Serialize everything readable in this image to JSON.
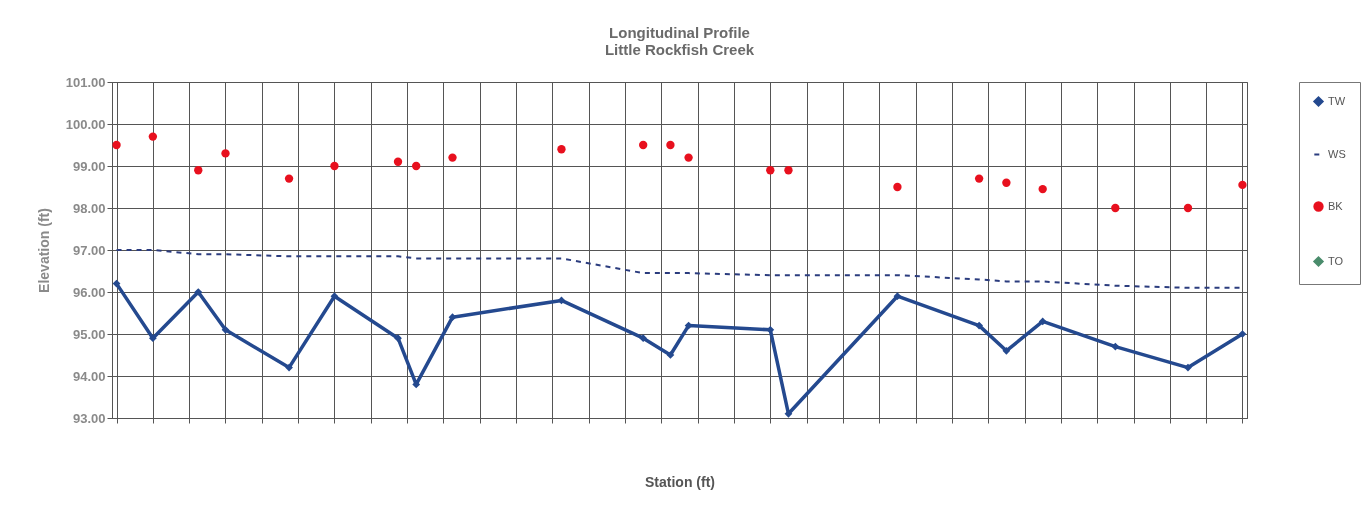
{
  "chart_data": {
    "type": "line",
    "title": "Longitudinal Profile",
    "subtitle": "Little Rockfish Creek",
    "xlabel": "Station (ft)",
    "ylabel": "Elevation (ft)",
    "categories": [
      null,
      null,
      null,
      null,
      null,
      null,
      null,
      null,
      null,
      null,
      null,
      null,
      null,
      null,
      null,
      null,
      null,
      null,
      null,
      null,
      null,
      null,
      null,
      null,
      null,
      null,
      null,
      null,
      null,
      null,
      null,
      null,
      null,
      null,
      null,
      null,
      null,
      null,
      null,
      null,
      null,
      null,
      null,
      null,
      null,
      null,
      null,
      null,
      null,
      null,
      null,
      null,
      null,
      null,
      null,
      null,
      null,
      null,
      null,
      null,
      null,
      null,
      null,
      null,
      null,
      null,
      null,
      null,
      null,
      null,
      null,
      null,
      null,
      null,
      null,
      null,
      null,
      null,
      null,
      null,
      null,
      null,
      null,
      null,
      null,
      null,
      null,
      null,
      null,
      null,
      null,
      null,
      null,
      null,
      null,
      null,
      null,
      null,
      null,
      null,
      null,
      null,
      null,
      null,
      null,
      null,
      null,
      null,
      null,
      null,
      null,
      null,
      null,
      null,
      null,
      null,
      null,
      null,
      null,
      null,
      null,
      null,
      null,
      null,
      null
    ],
    "series": [
      {
        "name": "TW",
        "color": "#24498f",
        "marker": "diamond",
        "line_style": "solid",
        "values": [
          96.2,
          null,
          null,
          null,
          94.9,
          null,
          null,
          null,
          null,
          96.0,
          null,
          null,
          95.1,
          null,
          null,
          null,
          null,
          null,
          null,
          94.2,
          null,
          null,
          null,
          null,
          95.9,
          null,
          null,
          null,
          null,
          null,
          null,
          94.9,
          null,
          93.8,
          null,
          null,
          null,
          95.4,
          null,
          null,
          null,
          null,
          null,
          null,
          null,
          null,
          null,
          null,
          null,
          95.8,
          null,
          null,
          null,
          null,
          null,
          null,
          null,
          null,
          94.9,
          null,
          null,
          94.5,
          null,
          95.2,
          null,
          null,
          null,
          null,
          null,
          null,
          null,
          null,
          95.1,
          null,
          93.1,
          null,
          null,
          null,
          null,
          null,
          null,
          null,
          null,
          null,
          null,
          null,
          95.9,
          null,
          null,
          null,
          null,
          null,
          null,
          null,
          null,
          95.2,
          null,
          null,
          94.6,
          null,
          null,
          null,
          95.3,
          null,
          null,
          null,
          null,
          null,
          null,
          null,
          94.7,
          null,
          null,
          null,
          null,
          null,
          null,
          null,
          94.2,
          null,
          null,
          null,
          null,
          null,
          95.0
        ]
      },
      {
        "name": "WS",
        "color": "#2b3c7e",
        "marker": "none",
        "line_style": "dashed",
        "values": [
          97.0,
          null,
          null,
          null,
          97.0,
          null,
          null,
          null,
          null,
          96.9,
          null,
          null,
          96.9,
          null,
          null,
          null,
          null,
          null,
          null,
          96.85,
          null,
          null,
          null,
          null,
          96.85,
          null,
          null,
          null,
          null,
          null,
          null,
          96.85,
          null,
          96.8,
          null,
          null,
          null,
          96.8,
          null,
          null,
          null,
          null,
          null,
          null,
          null,
          null,
          null,
          null,
          null,
          96.8,
          null,
          null,
          null,
          null,
          null,
          null,
          null,
          null,
          96.45,
          null,
          null,
          96.45,
          null,
          96.45,
          null,
          null,
          null,
          null,
          null,
          null,
          null,
          null,
          96.4,
          null,
          96.4,
          null,
          null,
          null,
          null,
          null,
          null,
          null,
          null,
          null,
          null,
          null,
          96.4,
          null,
          null,
          null,
          null,
          null,
          null,
          null,
          null,
          96.3,
          null,
          null,
          96.25,
          null,
          null,
          null,
          96.25,
          null,
          null,
          null,
          null,
          null,
          null,
          null,
          96.15,
          null,
          null,
          null,
          null,
          null,
          null,
          null,
          96.1,
          null,
          null,
          null,
          null,
          null,
          96.1
        ]
      },
      {
        "name": "BK",
        "type": "scatter",
        "color": "#e8101e",
        "marker": "circle",
        "values": [
          99.5,
          null,
          null,
          null,
          99.7,
          null,
          null,
          null,
          null,
          98.9,
          null,
          null,
          99.3,
          null,
          null,
          null,
          null,
          null,
          null,
          98.7,
          null,
          null,
          null,
          null,
          99.0,
          null,
          null,
          null,
          null,
          null,
          null,
          99.1,
          null,
          99.0,
          null,
          null,
          null,
          99.2,
          null,
          null,
          null,
          null,
          null,
          null,
          null,
          null,
          null,
          null,
          null,
          99.4,
          null,
          null,
          null,
          null,
          null,
          null,
          null,
          null,
          99.5,
          null,
          null,
          99.5,
          null,
          99.2,
          null,
          null,
          null,
          null,
          null,
          null,
          null,
          null,
          98.9,
          null,
          98.9,
          null,
          null,
          null,
          null,
          null,
          null,
          null,
          null,
          null,
          null,
          null,
          98.5,
          null,
          null,
          null,
          null,
          null,
          null,
          null,
          null,
          98.7,
          null,
          null,
          98.6,
          null,
          null,
          null,
          98.45,
          null,
          null,
          null,
          null,
          null,
          null,
          null,
          98.0,
          null,
          null,
          null,
          null,
          null,
          null,
          null,
          98.0,
          null,
          null,
          null,
          null,
          null,
          98.55
        ]
      },
      {
        "name": "TO",
        "type": "scatter",
        "color": "#4a8c6c",
        "marker": "diamond",
        "values": [
          null,
          null,
          null,
          null,
          null,
          null,
          null,
          null,
          null,
          null,
          null,
          null,
          null,
          null,
          null,
          null,
          null,
          null,
          null,
          null,
          null,
          null,
          null,
          null,
          null,
          null,
          null,
          null,
          null,
          null,
          null,
          null,
          null,
          null,
          null,
          null,
          null,
          null,
          null,
          null,
          null,
          null,
          null,
          null,
          null,
          null,
          null,
          null,
          null,
          null,
          null,
          null,
          null,
          null,
          null,
          null,
          null,
          null,
          null,
          null,
          null,
          null,
          null,
          null,
          null,
          null,
          null,
          null,
          null,
          null,
          null,
          null,
          null,
          null,
          null,
          null,
          null,
          null,
          null,
          null,
          null,
          null,
          null,
          null,
          null,
          null,
          null,
          null,
          null,
          null,
          null,
          null,
          null,
          null,
          null,
          null,
          null,
          null,
          null,
          null,
          null,
          null,
          null,
          null,
          null,
          null,
          null,
          null,
          null,
          null,
          null,
          null,
          null,
          null,
          null,
          null,
          null,
          null,
          null,
          null,
          null,
          null,
          null,
          null,
          null
        ]
      }
    ],
    "ylim": [
      93,
      101
    ],
    "yticks": [
      {
        "value": 93,
        "label": "93.00"
      },
      {
        "value": 94,
        "label": "94.00"
      },
      {
        "value": 95,
        "label": "95.00"
      },
      {
        "value": 96,
        "label": "96.00"
      },
      {
        "value": 97,
        "label": "97.00"
      },
      {
        "value": 98,
        "label": "98.00"
      },
      {
        "value": 99,
        "label": "99.00"
      },
      {
        "value": 100,
        "label": "100.00"
      },
      {
        "value": 101,
        "label": "101.00"
      }
    ],
    "grid": true,
    "legend": "right",
    "tick_labels": "y"
  }
}
